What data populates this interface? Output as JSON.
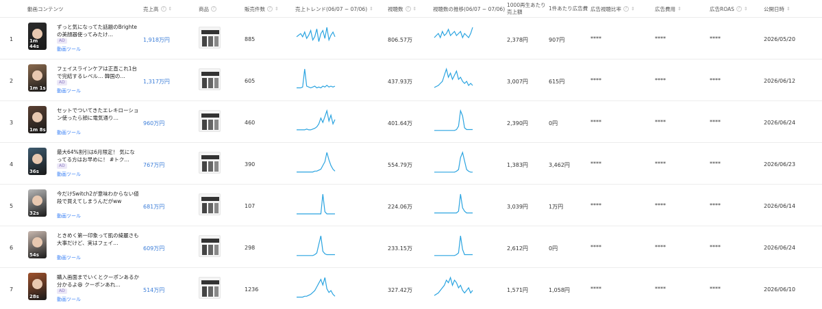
{
  "header": {
    "video": "動画コンテンツ",
    "sales": "売上高",
    "product": "商品",
    "sold": "販売件数",
    "trend": "売上トレンド(06/07 ~ 07/06)",
    "views": "視聴数",
    "view_trend": "視聴数の推移(06/07 ~ 07/06)",
    "rev_per_1000": "1000再生あたり売上額",
    "ad_cost_per": "1件あたり広告費",
    "ad_ratio": "広告視聴比率",
    "ad_cost": "広告費用",
    "ad_roas": "広告ROAS",
    "published": "公開日時"
  },
  "rows": [
    {
      "rank": "1",
      "duration": "1m 44s",
      "title": "ずっと気になってた話題のBrighteの美顔器使ってみたけ…",
      "ad": "AD",
      "tool": "動画ツール",
      "sales": "1,918万円",
      "sold": "885",
      "views": "806.57万",
      "rev": "2,378円",
      "adcost": "907円",
      "ad_ratio": "****",
      "ad_cost": "****",
      "roas": "****",
      "date": "2026/05/20",
      "thumb_color": "#2b2b2b"
    },
    {
      "rank": "2",
      "duration": "1m 1s",
      "title": "フェイスラインケアは正直これ1台で完結するレベル… 韓国の…",
      "ad": "AD",
      "tool": "動画ツール",
      "sales": "1,317万円",
      "sold": "605",
      "views": "437.93万",
      "rev": "3,007円",
      "adcost": "615円",
      "ad_ratio": "****",
      "ad_cost": "****",
      "roas": "****",
      "date": "2026/06/12",
      "thumb_color": "#8a6a4e"
    },
    {
      "rank": "3",
      "duration": "1m 8s",
      "title": "セットでついてきたエレキローション使ったら顔に電気通り…",
      "ad": "",
      "tool": "動画ツール",
      "sales": "960万円",
      "sold": "460",
      "views": "401.64万",
      "rev": "2,390円",
      "adcost": "0円",
      "ad_ratio": "****",
      "ad_cost": "****",
      "roas": "****",
      "date": "2026/06/24",
      "thumb_color": "#5a4032"
    },
    {
      "rank": "4",
      "duration": "36s",
      "title": "最大64%割引は6月限定！ 気になってる方はお早めに！ #トク…",
      "ad": "AD",
      "tool": "動画ツール",
      "sales": "767万円",
      "sold": "390",
      "views": "554.79万",
      "rev": "1,383円",
      "adcost": "3,462円",
      "ad_ratio": "****",
      "ad_cost": "****",
      "roas": "****",
      "date": "2026/06/23",
      "thumb_color": "#3d5a6e"
    },
    {
      "rank": "5",
      "duration": "32s",
      "title": "今だけSwitch2が意味わからない値段で買えてしまうんだがww",
      "ad": "",
      "tool": "動画ツール",
      "sales": "681万円",
      "sold": "107",
      "views": "224.06万",
      "rev": "3,039円",
      "adcost": "1万円",
      "ad_ratio": "****",
      "ad_cost": "****",
      "roas": "****",
      "date": "2026/06/14",
      "thumb_color": "#b8b8b8"
    },
    {
      "rank": "6",
      "duration": "54s",
      "title": "ときめく第一印象って肌の綺麗さも大事だけど、実はフェイ…",
      "ad": "",
      "tool": "動画ツール",
      "sales": "609万円",
      "sold": "298",
      "views": "233.15万",
      "rev": "2,612円",
      "adcost": "0円",
      "ad_ratio": "****",
      "ad_cost": "****",
      "roas": "****",
      "date": "2026/06/24",
      "thumb_color": "#c9b9b0"
    },
    {
      "rank": "7",
      "duration": "28s",
      "title": "購入画面までいくとクーポンあるか分かるよ😆 クーポンあれ…",
      "ad": "AD",
      "tool": "動画ツール",
      "sales": "514万円",
      "sold": "1236",
      "views": "327.42万",
      "rev": "1,571円",
      "adcost": "1,058円",
      "ad_ratio": "****",
      "ad_cost": "****",
      "roas": "****",
      "date": "2026/06/10",
      "thumb_color": "#a0522d"
    }
  ],
  "sales_trend_series": [
    [
      14,
      16,
      18,
      14,
      20,
      12,
      16,
      22,
      10,
      14,
      24,
      8,
      18,
      22,
      12,
      26,
      10,
      16,
      20,
      14
    ],
    [
      2,
      2,
      2,
      3,
      24,
      4,
      3,
      2,
      3,
      4,
      2,
      3,
      2,
      4,
      3,
      5,
      3,
      4,
      3,
      4
    ],
    [
      2,
      2,
      2,
      2,
      2,
      3,
      2,
      2,
      3,
      4,
      6,
      10,
      18,
      12,
      20,
      28,
      14,
      22,
      10,
      16
    ],
    [
      1,
      1,
      1,
      1,
      1,
      1,
      1,
      1,
      1,
      2,
      2,
      3,
      4,
      8,
      12,
      22,
      14,
      8,
      4,
      2
    ],
    [
      1,
      1,
      1,
      1,
      1,
      1,
      1,
      1,
      1,
      1,
      1,
      1,
      1,
      28,
      4,
      1,
      1,
      1,
      1,
      1
    ],
    [
      1,
      1,
      1,
      1,
      1,
      1,
      1,
      1,
      1,
      2,
      4,
      14,
      24,
      6,
      3,
      2,
      2,
      2,
      2,
      2
    ],
    [
      1,
      1,
      1,
      1,
      2,
      2,
      3,
      4,
      6,
      8,
      12,
      16,
      20,
      14,
      22,
      10,
      6,
      8,
      4,
      2
    ]
  ],
  "view_trend_series": [
    [
      10,
      12,
      14,
      10,
      16,
      12,
      14,
      18,
      12,
      14,
      16,
      12,
      14,
      16,
      10,
      14,
      12,
      10,
      14,
      20
    ],
    [
      2,
      3,
      4,
      6,
      8,
      14,
      20,
      12,
      16,
      10,
      14,
      18,
      10,
      12,
      8,
      6,
      8,
      4,
      6,
      4
    ],
    [
      1,
      1,
      1,
      1,
      1,
      1,
      1,
      1,
      1,
      1,
      1,
      2,
      6,
      24,
      18,
      4,
      2,
      2,
      2,
      2
    ],
    [
      1,
      1,
      1,
      1,
      1,
      1,
      1,
      1,
      1,
      1,
      1,
      2,
      4,
      18,
      24,
      14,
      4,
      2,
      1,
      1
    ],
    [
      1,
      1,
      1,
      1,
      1,
      1,
      1,
      1,
      1,
      1,
      1,
      1,
      2,
      12,
      4,
      2,
      1,
      1,
      1,
      1
    ],
    [
      1,
      1,
      1,
      1,
      1,
      1,
      1,
      1,
      1,
      1,
      1,
      2,
      4,
      24,
      8,
      2,
      2,
      2,
      2,
      2
    ],
    [
      2,
      3,
      4,
      6,
      8,
      10,
      14,
      12,
      16,
      10,
      14,
      12,
      8,
      10,
      6,
      4,
      6,
      8,
      4,
      6
    ]
  ],
  "colors": {
    "accent": "#3b7dd8",
    "spark": "#29a3e0"
  }
}
